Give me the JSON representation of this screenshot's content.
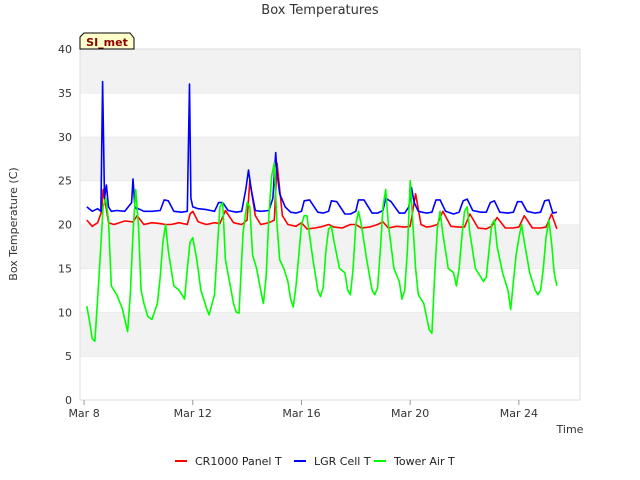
{
  "chart_data": {
    "type": "line",
    "title": "Box Temperatures",
    "xlabel": "Time",
    "ylabel": "Box Temperature (C)",
    "site_label": "SI_met",
    "x_unit": "date (2013-03, day-of-month)",
    "x_ticks": [
      {
        "label": "Mar 8",
        "day": 8
      },
      {
        "label": "Mar 12",
        "day": 12
      },
      {
        "label": "Mar 16",
        "day": 16
      },
      {
        "label": "Mar 20",
        "day": 20
      },
      {
        "label": "Mar 24",
        "day": 24
      }
    ],
    "xlim": [
      7.85,
      26.25
    ],
    "ylim": [
      0,
      40
    ],
    "y_ticks": [
      0,
      5,
      10,
      15,
      20,
      25,
      30,
      35,
      40
    ],
    "grid": "horizontal bands",
    "legend_position": "bottom",
    "series": [
      {
        "name": "CR1000 Panel T",
        "color": "#ff0000",
        "x": [
          8.1,
          8.3,
          8.5,
          8.65,
          8.7,
          8.78,
          8.9,
          9.1,
          9.5,
          9.8,
          9.95,
          10.2,
          10.5,
          10.8,
          11.0,
          11.2,
          11.5,
          11.8,
          11.9,
          12.0,
          12.2,
          12.5,
          12.8,
          13.0,
          13.2,
          13.5,
          13.8,
          14.0,
          14.1,
          14.3,
          14.5,
          14.8,
          15.0,
          15.1,
          15.3,
          15.5,
          15.8,
          16.0,
          16.2,
          16.5,
          16.8,
          17.0,
          17.2,
          17.5,
          17.8,
          18.0,
          18.2,
          18.5,
          18.8,
          19.0,
          19.2,
          19.5,
          19.8,
          20.0,
          20.2,
          20.4,
          20.6,
          20.8,
          21.0,
          21.2,
          21.5,
          21.8,
          22.0,
          22.2,
          22.5,
          22.8,
          23.0,
          23.2,
          23.5,
          23.8,
          24.0,
          24.2,
          24.5,
          24.8,
          25.0,
          25.2,
          25.4
        ],
        "y": [
          20.5,
          19.8,
          20.2,
          21.5,
          24.0,
          22.5,
          20.2,
          20.0,
          20.4,
          20.3,
          21.0,
          20.0,
          20.2,
          20.1,
          20.0,
          20.0,
          20.2,
          20.0,
          21.2,
          21.5,
          20.3,
          20.0,
          20.2,
          20.1,
          21.6,
          20.2,
          20.0,
          20.5,
          25.0,
          21.0,
          20.0,
          20.2,
          20.5,
          27.0,
          21.0,
          20.0,
          19.8,
          20.2,
          19.5,
          19.6,
          19.8,
          20.0,
          19.7,
          19.6,
          20.0,
          20.0,
          19.6,
          19.7,
          20.0,
          20.3,
          19.6,
          19.8,
          19.7,
          19.8,
          23.5,
          20.0,
          19.7,
          19.8,
          20.0,
          21.5,
          19.8,
          19.7,
          19.7,
          21.2,
          19.6,
          19.5,
          19.8,
          20.8,
          19.6,
          19.6,
          19.7,
          21.0,
          19.6,
          19.6,
          19.7,
          21.2,
          19.5
        ]
      },
      {
        "name": "LGR Cell T",
        "color": "#0000ff",
        "x": [
          8.1,
          8.3,
          8.5,
          8.62,
          8.68,
          8.75,
          8.82,
          8.9,
          9.0,
          9.2,
          9.5,
          9.75,
          9.8,
          9.87,
          9.93,
          10.0,
          10.2,
          10.5,
          10.8,
          10.95,
          11.1,
          11.3,
          11.6,
          11.8,
          11.88,
          11.93,
          12.0,
          12.2,
          12.5,
          12.8,
          12.95,
          13.1,
          13.3,
          13.6,
          13.8,
          13.95,
          14.05,
          14.15,
          14.3,
          14.5,
          14.8,
          14.95,
          15.05,
          15.1,
          15.2,
          15.4,
          15.6,
          15.8,
          16.0,
          16.1,
          16.3,
          16.6,
          16.8,
          17.0,
          17.1,
          17.3,
          17.6,
          17.8,
          18.0,
          18.1,
          18.3,
          18.6,
          18.8,
          19.0,
          19.1,
          19.3,
          19.6,
          19.8,
          19.95,
          20.05,
          20.15,
          20.3,
          20.6,
          20.8,
          20.95,
          21.1,
          21.3,
          21.6,
          21.8,
          21.95,
          22.1,
          22.3,
          22.6,
          22.8,
          22.95,
          23.1,
          23.3,
          23.6,
          23.8,
          23.95,
          24.1,
          24.3,
          24.6,
          24.8,
          24.95,
          25.1,
          25.25,
          25.4
        ],
        "y": [
          22.0,
          21.5,
          21.8,
          21.5,
          36.3,
          23.0,
          24.5,
          22.0,
          21.5,
          21.6,
          21.5,
          22.5,
          25.2,
          22.0,
          21.8,
          21.8,
          21.5,
          21.5,
          21.6,
          22.8,
          22.7,
          21.5,
          21.4,
          21.5,
          36.0,
          23.0,
          22.0,
          21.8,
          21.7,
          21.5,
          22.5,
          22.5,
          21.6,
          21.4,
          21.5,
          24.0,
          26.2,
          24.0,
          21.6,
          21.5,
          21.6,
          23.0,
          28.2,
          26.0,
          23.5,
          22.0,
          21.4,
          21.3,
          21.5,
          22.7,
          22.8,
          21.4,
          21.3,
          21.5,
          22.7,
          22.6,
          21.2,
          21.2,
          21.5,
          22.8,
          22.8,
          21.3,
          21.3,
          21.6,
          23.0,
          22.6,
          21.3,
          21.3,
          22.0,
          24.2,
          22.5,
          21.5,
          21.3,
          21.4,
          22.8,
          22.8,
          21.5,
          21.2,
          21.4,
          22.7,
          22.9,
          21.6,
          21.4,
          21.4,
          22.5,
          22.7,
          21.4,
          21.3,
          21.4,
          22.6,
          22.6,
          21.5,
          21.3,
          21.4,
          22.7,
          22.8,
          21.3,
          21.4
        ]
      },
      {
        "name": "Tower Air T",
        "color": "#00ff00",
        "x": [
          8.1,
          8.2,
          8.3,
          8.4,
          8.55,
          8.7,
          8.8,
          8.9,
          9.0,
          9.2,
          9.4,
          9.6,
          9.7,
          9.8,
          9.9,
          10.0,
          10.1,
          10.2,
          10.35,
          10.5,
          10.7,
          10.8,
          10.9,
          11.0,
          11.1,
          11.3,
          11.5,
          11.6,
          11.7,
          11.8,
          11.9,
          12.0,
          12.15,
          12.3,
          12.5,
          12.6,
          12.8,
          12.9,
          13.0,
          13.1,
          13.2,
          13.35,
          13.5,
          13.6,
          13.7,
          13.85,
          14.0,
          14.1,
          14.2,
          14.35,
          14.5,
          14.6,
          14.7,
          14.8,
          14.9,
          15.0,
          15.1,
          15.2,
          15.35,
          15.5,
          15.6,
          15.7,
          15.8,
          15.9,
          16.0,
          16.1,
          16.2,
          16.4,
          16.6,
          16.7,
          16.8,
          16.9,
          17.0,
          17.1,
          17.2,
          17.4,
          17.6,
          17.7,
          17.8,
          17.9,
          18.0,
          18.1,
          18.2,
          18.4,
          18.6,
          18.7,
          18.8,
          18.9,
          19.0,
          19.1,
          19.2,
          19.4,
          19.6,
          19.7,
          19.8,
          19.9,
          20.0,
          20.1,
          20.2,
          20.3,
          20.5,
          20.7,
          20.8,
          20.9,
          21.0,
          21.1,
          21.2,
          21.4,
          21.6,
          21.7,
          21.8,
          21.9,
          22.0,
          22.1,
          22.2,
          22.4,
          22.6,
          22.7,
          22.8,
          22.9,
          23.0,
          23.1,
          23.2,
          23.4,
          23.6,
          23.7,
          23.8,
          23.9,
          24.0,
          24.1,
          24.2,
          24.4,
          24.6,
          24.7,
          24.8,
          24.9,
          25.0,
          25.1,
          25.2,
          25.3,
          25.4
        ],
        "y": [
          10.7,
          9.0,
          7.0,
          6.7,
          14.0,
          22.0,
          23.0,
          20.5,
          13.0,
          12.0,
          10.5,
          7.8,
          12.0,
          19.0,
          24.0,
          20.0,
          12.5,
          11.0,
          9.5,
          9.2,
          11.0,
          14.0,
          18.0,
          20.0,
          17.0,
          13.0,
          12.5,
          12.0,
          11.5,
          15.0,
          18.0,
          18.5,
          16.0,
          12.5,
          10.5,
          9.7,
          12.0,
          17.0,
          22.0,
          22.5,
          16.0,
          13.5,
          11.0,
          10.0,
          9.9,
          19.0,
          22.5,
          22.0,
          16.5,
          15.0,
          12.5,
          11.0,
          14.0,
          21.0,
          25.5,
          27.0,
          20.0,
          16.0,
          15.0,
          13.5,
          11.5,
          10.6,
          13.0,
          16.5,
          20.0,
          21.0,
          21.0,
          16.5,
          12.5,
          11.8,
          12.8,
          17.0,
          19.5,
          19.8,
          18.0,
          15.0,
          14.5,
          12.5,
          12.0,
          15.0,
          20.0,
          21.5,
          20.0,
          16.0,
          12.5,
          12.0,
          12.8,
          17.0,
          22.0,
          24.0,
          20.0,
          15.0,
          13.5,
          11.5,
          12.5,
          17.0,
          25.0,
          20.0,
          15.0,
          12.0,
          11.0,
          8.0,
          7.6,
          14.0,
          19.5,
          21.5,
          19.0,
          15.0,
          14.5,
          13.0,
          15.0,
          18.5,
          21.5,
          22.0,
          19.0,
          15.0,
          14.0,
          13.5,
          14.0,
          17.0,
          20.0,
          20.5,
          17.5,
          14.5,
          12.5,
          10.3,
          13.5,
          16.5,
          18.5,
          20.0,
          18.0,
          14.5,
          12.5,
          12.0,
          12.5,
          15.0,
          18.5,
          20.5,
          18.0,
          14.5,
          13.0
        ]
      }
    ]
  }
}
